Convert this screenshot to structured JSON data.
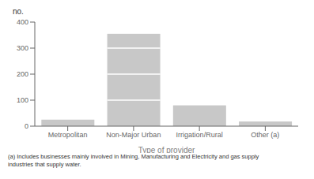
{
  "chart_data": {
    "type": "bar",
    "title": "no.",
    "xlabel": "Type of provider",
    "categories": [
      "Metropolitan",
      "Non-Major Urban",
      "Irrigation/Rural",
      "Other (a)"
    ],
    "values": [
      25,
      355,
      80,
      18
    ],
    "color": "#c8c8c8",
    "ylim": [
      0,
      400
    ],
    "yticks": [
      0,
      100,
      200,
      300,
      400
    ],
    "grid": false,
    "segment_lines": [
      [],
      [
        100,
        200,
        300
      ],
      [],
      []
    ],
    "footnote": [
      "(a) Includes businesses mainly involved in Mining, Manufacturing and Electricity and gas supply",
      "industries that supply water."
    ]
  }
}
